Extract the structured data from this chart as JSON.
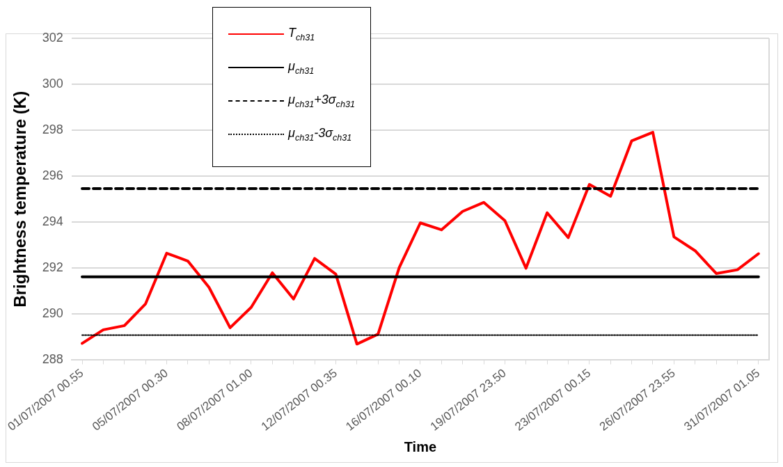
{
  "chart_data": {
    "type": "line",
    "xlabel": "Time",
    "ylabel": "Brightness temperature (K)",
    "categories": [
      "01/07/2007 00.55",
      null,
      null,
      null,
      "05/07/2007 00.30",
      null,
      null,
      null,
      "08/07/2007 01.00",
      null,
      null,
      null,
      "12/07/2007 00.35",
      null,
      null,
      null,
      "16/07/2007 00.10",
      null,
      null,
      null,
      "19/07/2007 23.50",
      null,
      null,
      null,
      "23/07/2007 00.15",
      null,
      null,
      null,
      "26/07/2007 23.55",
      null,
      null,
      null,
      "31/07/2007 01.05"
    ],
    "series": [
      {
        "name": "T$_{ch31}$",
        "color": "#ff0000",
        "line_style": "solid",
        "values": [
          288.73,
          289.32,
          289.5,
          290.45,
          292.65,
          292.31,
          291.17,
          289.41,
          290.3,
          291.8,
          290.66,
          292.42,
          291.74,
          288.7,
          289.13,
          292.02,
          293.97,
          293.67,
          294.47,
          294.86,
          294.07,
          292.0,
          294.41,
          293.33,
          295.64,
          295.13,
          297.54,
          297.91,
          293.36,
          292.76,
          291.77,
          291.93,
          292.63
        ]
      },
      {
        "name": "μ$_{ch31}$",
        "color": "#000000",
        "line_style": "solid",
        "values": [
          291.62,
          291.62,
          291.62,
          291.62,
          291.62,
          291.62,
          291.62,
          291.62,
          291.62,
          291.62,
          291.62,
          291.62,
          291.62,
          291.62,
          291.62,
          291.62,
          291.62,
          291.62,
          291.62,
          291.62,
          291.62,
          291.62,
          291.62,
          291.62,
          291.62,
          291.62,
          291.62,
          291.62,
          291.62,
          291.62,
          291.62,
          291.62,
          291.62
        ]
      },
      {
        "name": "μ$_{ch31}$+3σ$_{ch31}$",
        "color": "#000000",
        "line_style": "dashed",
        "values": [
          295.46,
          295.46,
          295.46,
          295.46,
          295.46,
          295.46,
          295.46,
          295.46,
          295.46,
          295.46,
          295.46,
          295.46,
          295.46,
          295.46,
          295.46,
          295.46,
          295.46,
          295.46,
          295.46,
          295.46,
          295.46,
          295.46,
          295.46,
          295.46,
          295.46,
          295.46,
          295.46,
          295.46,
          295.46,
          295.46,
          295.46,
          295.46,
          295.46
        ]
      },
      {
        "name": "μ$_{ch31}$-3σ$_{ch31}$",
        "color": "#000000",
        "line_style": "dotted",
        "values": [
          289.09,
          289.09,
          289.09,
          289.09,
          289.09,
          289.09,
          289.09,
          289.09,
          289.09,
          289.09,
          289.09,
          289.09,
          289.09,
          289.09,
          289.09,
          289.09,
          289.09,
          289.09,
          289.09,
          289.09,
          289.09,
          289.09,
          289.09,
          289.09,
          289.09,
          289.09,
          289.09,
          289.09,
          289.09,
          289.09,
          289.09,
          289.09,
          289.09
        ]
      }
    ],
    "ylim": [
      288,
      302
    ],
    "yticks": [
      288,
      290,
      292,
      294,
      296,
      298,
      300,
      302
    ],
    "grid": "y",
    "legend": "top left",
    "marker": "none"
  }
}
